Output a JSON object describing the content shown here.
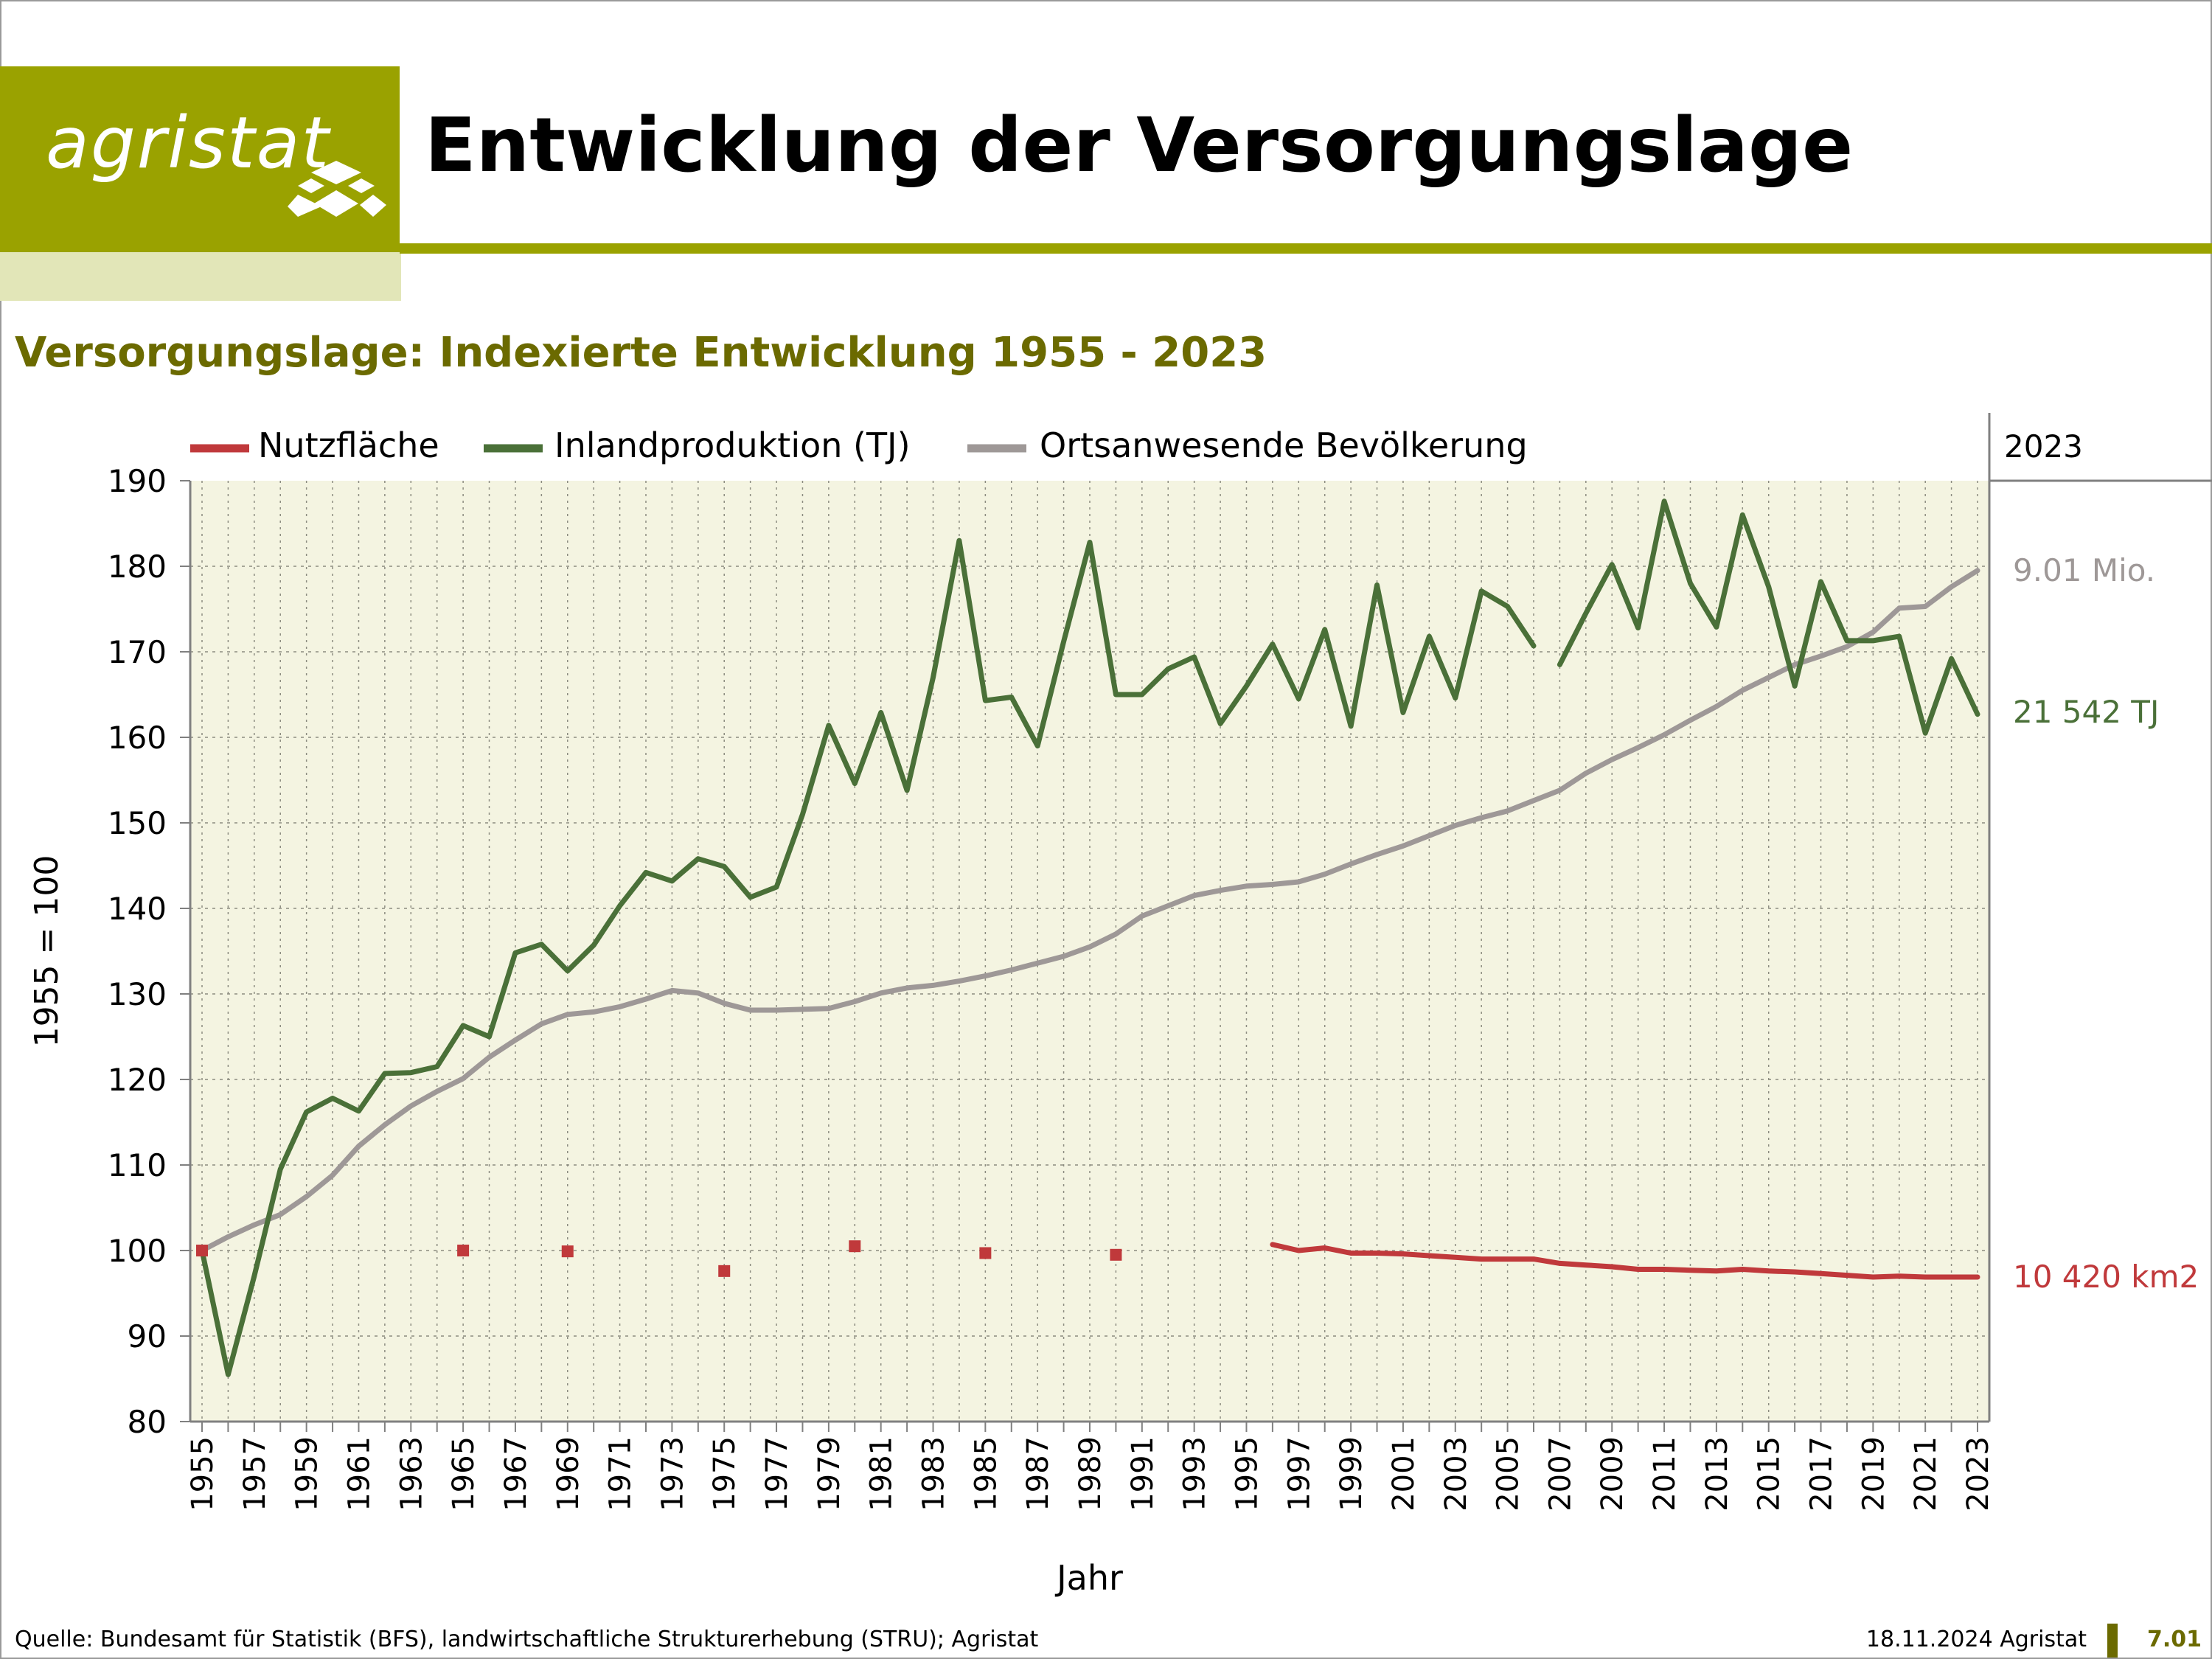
{
  "header": {
    "logo_text": "agristat",
    "title": "Entwicklung der Versorgungslage"
  },
  "colors": {
    "brand": "#9aa200",
    "brand_light": "#e2e6b8",
    "subtitle": "#6b6a00",
    "plot_bg": "#f4f4e1",
    "nutzflaeche": "#c0393b",
    "inland": "#4a7038",
    "bevoelkerung": "#9e9897"
  },
  "chart_data": {
    "type": "line",
    "title": "Versorgungslage: Indexierte Entwicklung 1955 - 2023",
    "xlabel": "Jahr",
    "ylabel": "1955 = 100",
    "ylim": [
      80,
      190
    ],
    "yticks": [
      80,
      90,
      100,
      110,
      120,
      130,
      140,
      150,
      160,
      170,
      180,
      190
    ],
    "xlim": [
      1955,
      2023
    ],
    "xticks": [
      1955,
      1957,
      1959,
      1961,
      1963,
      1965,
      1967,
      1969,
      1971,
      1973,
      1975,
      1977,
      1979,
      1981,
      1983,
      1985,
      1987,
      1989,
      1991,
      1993,
      1995,
      1997,
      1999,
      2001,
      2003,
      2005,
      2007,
      2009,
      2011,
      2013,
      2015,
      2017,
      2019,
      2021,
      2023
    ],
    "grid": true,
    "legend_position": "top",
    "end_label_header": "2023",
    "series": [
      {
        "name": "Nutzfläche",
        "end_label": "10 420 km2",
        "points": [
          [
            1955,
            100.0
          ],
          [
            1965,
            100.0
          ],
          [
            1969,
            99.9
          ],
          [
            1975,
            97.6
          ],
          [
            1980,
            100.5
          ],
          [
            1985,
            99.7
          ],
          [
            1990,
            99.5
          ]
        ],
        "line": [
          [
            1996,
            100.7
          ],
          [
            1997,
            100.0
          ],
          [
            1998,
            100.3
          ],
          [
            1999,
            99.7
          ],
          [
            2000,
            99.7
          ],
          [
            2001,
            99.6
          ],
          [
            2002,
            99.4
          ],
          [
            2003,
            99.2
          ],
          [
            2004,
            99.0
          ],
          [
            2005,
            99.0
          ],
          [
            2006,
            99.0
          ],
          [
            2007,
            98.5
          ],
          [
            2008,
            98.3
          ],
          [
            2009,
            98.1
          ],
          [
            2010,
            97.8
          ],
          [
            2011,
            97.8
          ],
          [
            2012,
            97.7
          ],
          [
            2013,
            97.6
          ],
          [
            2014,
            97.8
          ],
          [
            2015,
            97.6
          ],
          [
            2016,
            97.5
          ],
          [
            2017,
            97.3
          ],
          [
            2018,
            97.1
          ],
          [
            2019,
            96.9
          ],
          [
            2020,
            97.0
          ],
          [
            2021,
            96.9
          ],
          [
            2022,
            96.9
          ],
          [
            2023,
            96.9
          ]
        ]
      },
      {
        "name": "Inlandproduktion (TJ)",
        "end_label": "21 542 TJ",
        "segments": [
          [
            [
              1955,
              100.0
            ],
            [
              1956,
              85.5
            ],
            [
              1957,
              97.0
            ],
            [
              1958,
              109.5
            ],
            [
              1959,
              116.2
            ],
            [
              1960,
              117.8
            ],
            [
              1961,
              116.3
            ],
            [
              1962,
              120.7
            ],
            [
              1963,
              120.8
            ],
            [
              1964,
              121.5
            ],
            [
              1965,
              126.3
            ],
            [
              1966,
              125.0
            ],
            [
              1967,
              134.8
            ],
            [
              1968,
              135.8
            ],
            [
              1969,
              132.7
            ],
            [
              1970,
              135.7
            ],
            [
              1971,
              140.3
            ],
            [
              1972,
              144.2
            ],
            [
              1973,
              143.2
            ],
            [
              1974,
              145.8
            ],
            [
              1975,
              144.9
            ],
            [
              1976,
              141.3
            ],
            [
              1977,
              142.5
            ],
            [
              1978,
              151.0
            ],
            [
              1979,
              161.4
            ],
            [
              1980,
              154.6
            ],
            [
              1981,
              162.9
            ],
            [
              1982,
              153.8
            ],
            [
              1983,
              167.0
            ],
            [
              1984,
              183.0
            ],
            [
              1985,
              164.3
            ],
            [
              1986,
              164.7
            ],
            [
              1987,
              159.0
            ],
            [
              1988,
              171.2
            ],
            [
              1989,
              182.8
            ],
            [
              1990,
              165.0
            ],
            [
              1991,
              165.0
            ],
            [
              1992,
              168.0
            ],
            [
              1993,
              169.4
            ],
            [
              1994,
              161.6
            ],
            [
              1995,
              166.0
            ],
            [
              1996,
              170.9
            ],
            [
              1997,
              164.5
            ],
            [
              1998,
              172.6
            ],
            [
              1999,
              161.3
            ],
            [
              2000,
              177.8
            ],
            [
              2001,
              162.9
            ],
            [
              2002,
              171.8
            ],
            [
              2003,
              164.6
            ],
            [
              2004,
              177.1
            ],
            [
              2005,
              175.3
            ],
            [
              2006,
              170.7
            ]
          ],
          [
            [
              2007,
              168.5
            ],
            [
              2008,
              174.5
            ],
            [
              2009,
              180.2
            ],
            [
              2010,
              172.8
            ],
            [
              2011,
              187.6
            ],
            [
              2012,
              178.0
            ],
            [
              2013,
              172.9
            ],
            [
              2014,
              186.0
            ],
            [
              2015,
              177.6
            ],
            [
              2016,
              166.0
            ],
            [
              2017,
              178.2
            ],
            [
              2018,
              171.3
            ],
            [
              2019,
              171.3
            ],
            [
              2020,
              171.8
            ],
            [
              2021,
              160.5
            ],
            [
              2022,
              169.2
            ],
            [
              2023,
              162.7
            ]
          ]
        ]
      },
      {
        "name": "Ortsanwesende Bevölkerung",
        "end_label": "9.01 Mio.",
        "segments": [
          [
            [
              1955,
              100.0
            ],
            [
              1956,
              101.6
            ],
            [
              1957,
              103.0
            ],
            [
              1958,
              104.2
            ],
            [
              1959,
              106.3
            ],
            [
              1960,
              108.8
            ],
            [
              1961,
              112.2
            ],
            [
              1962,
              114.7
            ],
            [
              1963,
              116.9
            ],
            [
              1964,
              118.6
            ],
            [
              1965,
              120.1
            ],
            [
              1966,
              122.6
            ],
            [
              1967,
              124.6
            ],
            [
              1968,
              126.5
            ],
            [
              1969,
              127.6
            ],
            [
              1970,
              127.9
            ],
            [
              1971,
              128.5
            ],
            [
              1972,
              129.4
            ],
            [
              1973,
              130.4
            ],
            [
              1974,
              130.1
            ],
            [
              1975,
              128.9
            ],
            [
              1976,
              128.1
            ],
            [
              1977,
              128.1
            ],
            [
              1978,
              128.2
            ],
            [
              1979,
              128.3
            ],
            [
              1980,
              129.1
            ],
            [
              1981,
              130.1
            ],
            [
              1982,
              130.7
            ],
            [
              1983,
              131.0
            ],
            [
              1984,
              131.5
            ],
            [
              1985,
              132.1
            ],
            [
              1986,
              132.8
            ],
            [
              1987,
              133.6
            ],
            [
              1988,
              134.4
            ],
            [
              1989,
              135.5
            ],
            [
              1990,
              137.0
            ],
            [
              1991,
              139.1
            ],
            [
              1992,
              140.3
            ],
            [
              1993,
              141.5
            ],
            [
              1994,
              142.1
            ],
            [
              1995,
              142.6
            ],
            [
              1996,
              142.8
            ],
            [
              1997,
              143.1
            ],
            [
              1998,
              144.0
            ],
            [
              1999,
              145.2
            ],
            [
              2000,
              146.3
            ],
            [
              2001,
              147.3
            ],
            [
              2002,
              148.5
            ],
            [
              2003,
              149.7
            ],
            [
              2004,
              150.6
            ],
            [
              2005,
              151.4
            ],
            [
              2006,
              152.6
            ],
            [
              2007,
              153.8
            ],
            [
              2008,
              155.8
            ],
            [
              2009,
              157.4
            ],
            [
              2010,
              158.8
            ],
            [
              2011,
              160.3
            ],
            [
              2012,
              162.0
            ],
            [
              2013,
              163.6
            ],
            [
              2014,
              165.5
            ],
            [
              2015,
              167.0
            ],
            [
              2016,
              168.5
            ],
            [
              2017,
              169.5
            ],
            [
              2018,
              170.6
            ],
            [
              2019,
              172.3
            ],
            [
              2020,
              175.1
            ],
            [
              2021,
              175.3
            ],
            [
              2022,
              177.6
            ],
            [
              2023,
              179.5
            ]
          ]
        ]
      }
    ]
  },
  "footer": {
    "source": "Quelle: Bundesamt für Statistik (BFS), landwirtschaftliche Strukturerhebung (STRU); Agristat",
    "date": "18.11.2024 Agristat",
    "page": "7.01"
  }
}
